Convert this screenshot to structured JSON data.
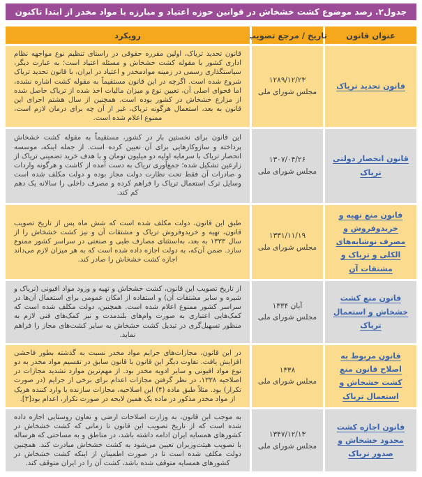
{
  "title_bar": "جدول۲. رصد موضوع کشت خشخاش در قوانین حوزه اعتیاد و مبارزه با مواد مخدر از ابتدا تاکنون",
  "columns": {
    "law": "عنوان قانون",
    "date": "تاریخ / مرجع تصویب",
    "approach": "رویکرد"
  },
  "rows": [
    {
      "law_title": "قانون تحدید تریاک",
      "date": "۱۲۸۹/۱۲/۲۳",
      "authority": "مجلس شورای ملی",
      "approach": "قانون تحدید تریاک، اولین مقرره حقوقی در راستای تنظیم نوع مواجهه نظام اداری کشور با مقوله کشت خشخاش و مسئله اعتیاد است؛ به عبارت دیگر، سیاستگذاری رسمی در زمینه موادمخدر و اعتیاد در ایران، با قانون تحدید تریاک شروع شده است. اگرچه در این قانون مستقیماً به مقوله کشت اشاره نشده، اما فحوای اصلی آن، تعیین نوع و میزان مالیات اخذ شده از تریاک حاصل شده از مزارع خشخاش در کشور بوده است. همچنین از سال هشتم اجرای این قانون به بعد، استعمال هرگونه تریاک، غیر از آن چه برای درمان لازم است، ممنوع اعلام شده است."
    },
    {
      "law_title": "قانون انحصار دولتی تریاک",
      "date": "۱۳۰۷/۰۴/۲۶",
      "authority": "مجلس شورای ملی",
      "approach": "این قانون برای نخستین بار در کشور، مستقیماً به مقوله کشت خشخاش پرداخته و سازوکارهایی برای آن تعیین کرده است. از جمله اینکه، موسسه انحصار تریاک با سرمایه اولیه دو میلیون تومان و با هدف خرید تضمینی تریاک از زارعین تشکیل شده؛ جمع‌آوری تریاک به دست آمده از کاشت و هرگونه واردات و صادرات آن فقط تحت نظارت دولت مجاز بوده و دولت مکلف شده است وسایل ترک استعمال تریاک را فراهم کرده و مصرف داخلی را سالانه یک دهم کم کند."
    },
    {
      "law_title": "قانون منع تهیه و خریدوفروش و مصرف نوشابه‌های الکلی و تریاک و مشتقات آن",
      "date": "۱۳۳۱/۱۱/۱۹",
      "authority": "مجلس شورای ملی",
      "approach": "طبق این قانون، دولت مکلف شده است که شش ماه پس از تاریخ تصویب قانون، تهیه و خریدوفروش تریاک و مشتقات آن و نیز کشت خشخاش را از سال ۱۳۳۳ به بعد، به‌استثنای مصارف طبی و صنعتی در سراسر کشور ممنوع سازد. ضمن آن‌که، به دولت اجازه داده شده است که به هر میزان لازم می‌داند اجازه کشت خشخاش را صادر کند."
    },
    {
      "law_title": "قانون منع کشت خشخاش و استعمال تریاک",
      "date": "آبان ۱۳۳۴",
      "authority": "مجلس شورای ملی",
      "approach": "از تاریخ تصویب این قانون، کشت خشخاش و تهیه و ورود مواد افیونی (تریاک و شیره و سایر مشتقات آن) و استفاده از امکان عمومی برای استعمال آن‌ها در سراسر کشور ممنوع اعلام شده است. همچنین، دولت مکلف شده است که کمک‌هایی اعتباری به صورت وام‌های بلندمدت و نیز کمک‌های فنی لازم به منظور تسهیل‌گری در تبدیل کشت خشخاش به سایر کشت‌های مجاز را فراهم نماید."
    },
    {
      "law_title": "قانون مربوط به اصلاح قانون منع کشت خشخاش و استعمال تریاک",
      "date": "۱۳۳۸",
      "authority": "مجلس شورای ملی",
      "approach": "در این قانون، مجازات‌های جرایم مواد مخدر نسبت به گذشته بطور فاحشی افزایش یافت. تفاوت دیگر این قانون با قانون سابق در تقسیم مواد مخدر به دو نوع مواد افیونی و سایر ادویه مخدر بود. از مهم‌ترین موارد تشدید مجازات در اصلاحیه ۱۳۳۸، در نظر گرفتن مجازات اعدام برای برخی از جرایم (در صورت تکرار) بود. مثلاً طبق ماده (۴) این اصلاحیه، مجازات سازنده یا وارد کننده هریک از مواد مخدر مذکور در ماده یک همین لایحه در صورت تکرار، اعدام بود[۳]."
    },
    {
      "law_title": "قانون اجازه کشت محدود خشخاش و صدور تریاک",
      "date": "۱۳۴۷/۱۲/۱۳",
      "authority": "مجلس شورای ملی",
      "approach": "به موجب این قانون، به وزارت اصلاحات ارضی و تعاون روستایی اجازه داده شده است که از تاریخ تصویب این قانون تا زمانی که کشت خشخاش در کشورهای همسایه ایران ادامه داشته باشد، در مناطق و به مساحتی که هرساله با تصویب هیئت‌وزیران تعیین می‌شود به کشت خشخاش مبادرت کند. همچنین دولت مکلف شده است تا در صورت اطمینان از اینکه کشت خشخاش در کشورهای همسایه متوقف شده باشد، کشت آن را در ایران متوقف کند."
    }
  ],
  "colors": {
    "title_bar_bg": "#9c4b97",
    "header_bg": "#f6a81c",
    "header_text": "#3d3d3d",
    "row_yellow": "#fbdc8f",
    "row_gray": "#dbdbdb",
    "link_blue": "#3a64ae",
    "body_text": "#3b3b3b"
  }
}
